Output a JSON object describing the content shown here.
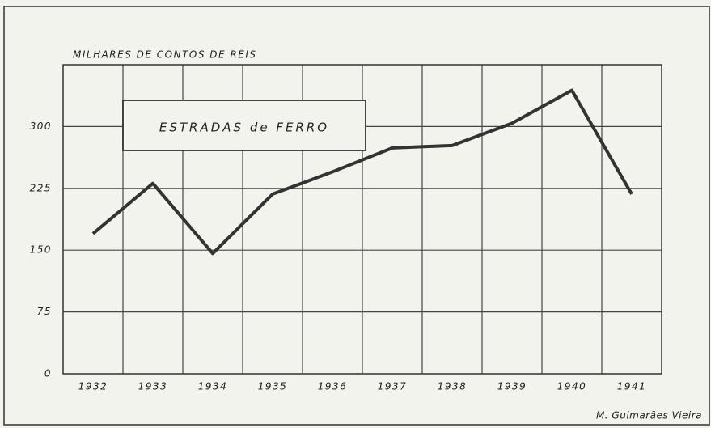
{
  "chart_data": {
    "type": "line",
    "y_label": "MILHARES DE CONTOS DE RÉIS",
    "categories": [
      "1932",
      "1933",
      "1934",
      "1935",
      "1936",
      "1937",
      "1938",
      "1939",
      "1940",
      "1941"
    ],
    "series": [
      {
        "name": "ESTRADAS de FERRO",
        "color": "#333333",
        "values": [
          170,
          231,
          146,
          218,
          245,
          274,
          277,
          304,
          344,
          218
        ]
      }
    ],
    "ylim": [
      0,
      375
    ],
    "yticks": [
      0,
      75,
      150,
      225,
      300
    ],
    "grid": true,
    "credit": "M. Guimarães Vieira"
  }
}
